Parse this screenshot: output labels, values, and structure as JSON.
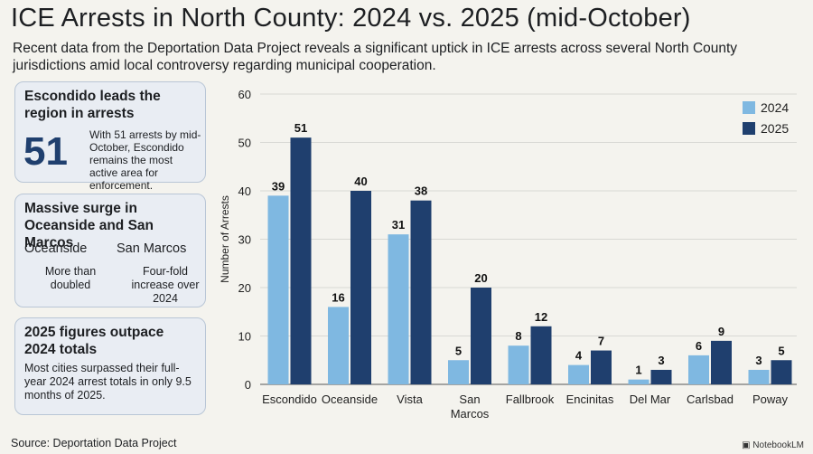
{
  "header": {
    "title": "ICE Arrests in North County: 2024 vs. 2025 (mid-October)",
    "subtitle": "Recent data from the Deportation Data Project reveals a significant uptick in ICE arrests across several North County jurisdictions amid local controversy regarding municipal cooperation."
  },
  "cards": {
    "lead": {
      "heading": "Escondido leads the region in arrests",
      "big_number": "51",
      "text": "With 51 arrests by mid-October, Escondido remains the most active area for enforcement."
    },
    "surge": {
      "heading": "Massive surge in Oceanside and San Marcos",
      "left_label": "Oceanside",
      "left_desc": "More than doubled",
      "right_label": "San Marcos",
      "right_desc": "Four-fold increase over 2024"
    },
    "outpace": {
      "heading": "2025 figures outpace 2024 totals",
      "text": "Most cities surpassed their full-year 2024 arrest totals in only 9.5 months of 2025."
    }
  },
  "footer": {
    "source": "Source: Deportation Data Project",
    "brand": "NotebookLM"
  },
  "chart_data": {
    "type": "bar",
    "ylabel": "Number of Arrests",
    "ylim": [
      0,
      60
    ],
    "yticks": [
      0,
      10,
      20,
      30,
      40,
      50,
      60
    ],
    "grid": true,
    "legend_position": "top-right",
    "categories": [
      "Escondido",
      "Oceanside",
      "Vista",
      "San Marcos",
      "Fallbrook",
      "Encinitas",
      "Del Mar",
      "Carlsbad",
      "Poway"
    ],
    "series": [
      {
        "name": "2024",
        "color": "#7fb8e1",
        "values": [
          39,
          16,
          31,
          5,
          8,
          4,
          1,
          6,
          3
        ]
      },
      {
        "name": "2025",
        "color": "#1f3f6e",
        "values": [
          51,
          40,
          38,
          20,
          12,
          7,
          3,
          9,
          5
        ]
      }
    ]
  }
}
